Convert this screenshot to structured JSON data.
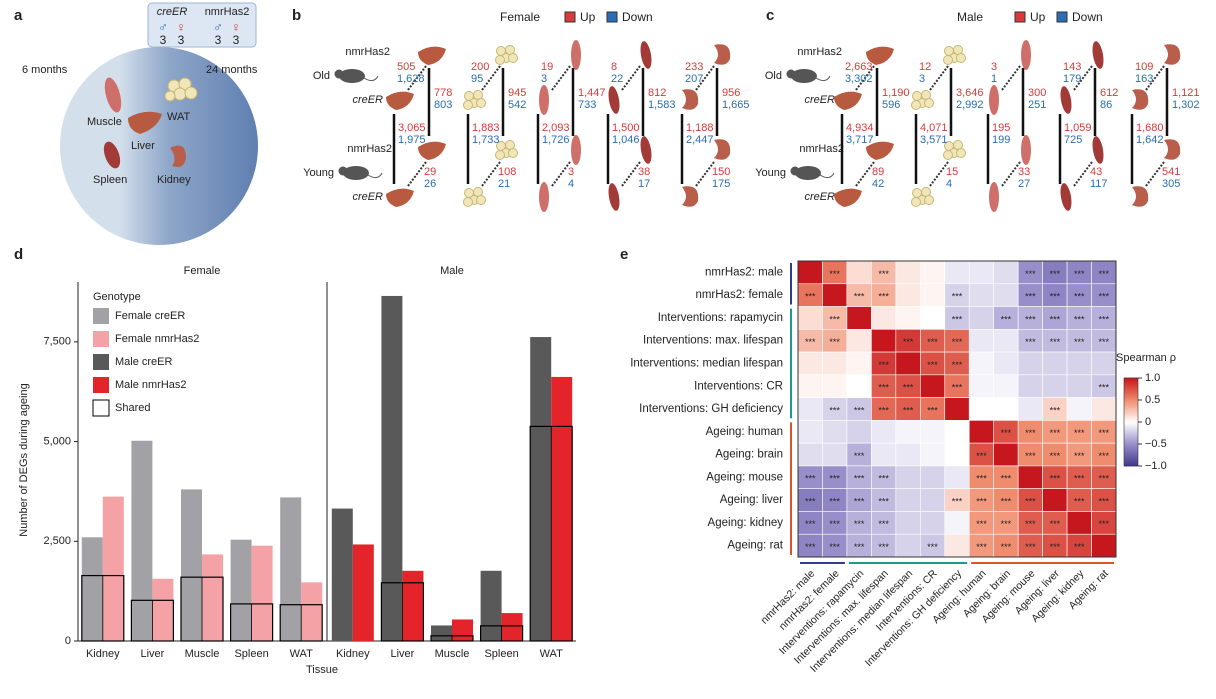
{
  "panel_a": {
    "label": "a",
    "ages": [
      "6 months",
      "24 months"
    ],
    "genotypes": [
      {
        "name": "creER",
        "male": "♂",
        "female": "♀",
        "male_n": "3",
        "female_n": "3"
      },
      {
        "name": "nmrHas2",
        "male": "♂",
        "female": "♀",
        "male_n": "3",
        "female_n": "3"
      }
    ],
    "tissues": {
      "muscle": "Muscle",
      "wat": "WAT",
      "liver": "Liver",
      "spleen": "Spleen",
      "kidney": "Kidney"
    }
  },
  "panel_b": {
    "label": "b",
    "title": "Female",
    "legend": {
      "up": "Up",
      "down": "Down"
    },
    "labels": {
      "old_nmr": "nmrHas2",
      "old": "Old",
      "old_cre": "creER",
      "young_nmr": "nmrHas2",
      "young": "Young",
      "young_cre": "creER"
    },
    "columns": [
      {
        "top": [
          "505",
          "1,628"
        ],
        "right": [
          "778",
          "803"
        ],
        "left": [
          "3,065",
          "1,975"
        ],
        "bottom": [
          "29",
          "26"
        ]
      },
      {
        "top": [
          "200",
          "95"
        ],
        "right": [
          "945",
          "542"
        ],
        "left": [
          "1,883",
          "1,733"
        ],
        "bottom": [
          "108",
          "21"
        ]
      },
      {
        "top": [
          "19",
          "3"
        ],
        "right": [
          "1,447",
          "733"
        ],
        "left": [
          "2,093",
          "1,726"
        ],
        "bottom": [
          "3",
          "4"
        ]
      },
      {
        "top": [
          "8",
          "22"
        ],
        "right": [
          "812",
          "1,583"
        ],
        "left": [
          "1,500",
          "1,046"
        ],
        "bottom": [
          "38",
          "17"
        ]
      },
      {
        "top": [
          "233",
          "207"
        ],
        "right": [
          "956",
          "1,665"
        ],
        "left": [
          "1,188",
          "2,447"
        ],
        "bottom": [
          "150",
          "175"
        ]
      }
    ]
  },
  "panel_c": {
    "label": "c",
    "title": "Male",
    "legend": {
      "up": "Up",
      "down": "Down"
    },
    "labels": {
      "old_nmr": "nmrHas2",
      "old": "Old",
      "old_cre": "creER",
      "young_nmr": "nmrHas2",
      "young": "Young",
      "young_cre": "creER"
    },
    "columns": [
      {
        "top": [
          "2,663",
          "3,302"
        ],
        "right": [
          "1,190",
          "596"
        ],
        "left": [
          "4,934",
          "3,717"
        ],
        "bottom": [
          "89",
          "42"
        ]
      },
      {
        "top": [
          "12",
          "3"
        ],
        "right": [
          "3,646",
          "2,992"
        ],
        "left": [
          "4,071",
          "3,571"
        ],
        "bottom": [
          "15",
          "4"
        ]
      },
      {
        "top": [
          "3",
          "1"
        ],
        "right": [
          "300",
          "251"
        ],
        "left": [
          "195",
          "199"
        ],
        "bottom": [
          "33",
          "27"
        ]
      },
      {
        "top": [
          "143",
          "179"
        ],
        "right": [
          "612",
          "86"
        ],
        "left": [
          "1,059",
          "725"
        ],
        "bottom": [
          "43",
          "117"
        ]
      },
      {
        "top": [
          "109",
          "163"
        ],
        "right": [
          "1,121",
          "1,302"
        ],
        "left": [
          "1,680",
          "1,642"
        ],
        "bottom": [
          "541",
          "305"
        ]
      }
    ]
  },
  "chart_data": [
    {
      "type": "bar",
      "label": "d",
      "y_label": "Number of DEGs during ageing",
      "x_label": "Tissue",
      "facet_titles": [
        "Female",
        "Male"
      ],
      "categories": [
        [
          "Kidney",
          "Liver",
          "Muscle",
          "Spleen",
          "WAT"
        ],
        [
          "Kidney",
          "Liver",
          "Muscle",
          "Spleen",
          "WAT"
        ]
      ],
      "ylim": [
        0,
        9000
      ],
      "yticks": [
        0,
        {
          "value": 2500,
          "label": "2,500"
        },
        {
          "value": 5000,
          "label": "5,000"
        },
        {
          "value": 7500,
          "label": "7,500"
        }
      ],
      "legend_title": "Genotype",
      "series": [
        {
          "name": "Female creER",
          "color": "#a2a2a6",
          "values": [
            [
              2600,
              5020,
              3800,
              2540,
              3600
            ],
            [
              null,
              null,
              null,
              null,
              null
            ]
          ]
        },
        {
          "name": "Female nmrHas2",
          "color": "#f4a2a6",
          "values": [
            [
              3620,
              1560,
              2170,
              2390,
              1470
            ],
            [
              null,
              null,
              null,
              null,
              null
            ]
          ]
        },
        {
          "name": "Male creER",
          "color": "#595959",
          "values": [
            [
              null,
              null,
              null,
              null,
              null
            ],
            [
              3320,
              8650,
              390,
              1760,
              7620
            ]
          ]
        },
        {
          "name": "Male nmrHas2",
          "color": "#e3242b",
          "values": [
            [
              null,
              null,
              null,
              null,
              null
            ],
            [
              2420,
              1760,
              540,
              700,
              6620
            ]
          ]
        },
        {
          "name": "Shared",
          "color": "#000000",
          "kind": "outline",
          "values": [
            [
              1640,
              1020,
              1600,
              930,
              910
            ],
            [
              null,
              1460,
              130,
              380,
              5380
            ]
          ]
        }
      ]
    },
    {
      "type": "heatmap",
      "label": "e",
      "colorbar_label": "Spearman ρ",
      "clim": [
        -1,
        1
      ],
      "cticks": [
        {
          "value": 1,
          "label": "1.0"
        },
        0.5,
        0,
        {
          "value": -0.5,
          "label": "−0.5"
        },
        {
          "value": -1,
          "label": "−1.0"
        }
      ],
      "rows": [
        "nmrHas2: male",
        "nmrHas2: female",
        "Interventions: rapamycin",
        "Interventions: max. lifespan",
        "Interventions: median lifespan",
        "Interventions: CR",
        "Interventions: GH deficiency",
        "Ageing: human",
        "Ageing: brain",
        "Ageing: mouse",
        "Ageing: liver",
        "Ageing: kidney",
        "Ageing: rat"
      ],
      "columns": [
        "nmrHas2: male",
        "nmrHas2: female",
        "Interventions: rapamycin",
        "Interventions: max. lifespan",
        "Interventions: median lifespan",
        "Interventions: CR",
        "Interventions: GH deficiency",
        "Ageing: human",
        "Ageing: brain",
        "Ageing: mouse",
        "Ageing: liver",
        "Ageing: kidney",
        "Ageing: rat"
      ],
      "values": [
        [
          1,
          0.6,
          0.15,
          0.3,
          0.1,
          0.05,
          -0.1,
          -0.1,
          -0.15,
          -0.5,
          -0.6,
          -0.55,
          -0.55
        ],
        [
          0.6,
          1,
          0.3,
          0.35,
          0.1,
          0.05,
          -0.2,
          -0.15,
          -0.15,
          -0.5,
          -0.55,
          -0.5,
          -0.5
        ],
        [
          0.15,
          0.3,
          1,
          0.1,
          0.05,
          0,
          -0.25,
          -0.2,
          -0.35,
          -0.35,
          -0.4,
          -0.35,
          -0.35
        ],
        [
          0.3,
          0.35,
          0.1,
          1,
          0.85,
          0.7,
          0.65,
          -0.1,
          -0.1,
          -0.3,
          -0.3,
          -0.3,
          -0.3
        ],
        [
          0.1,
          0.1,
          0.05,
          0.85,
          1,
          0.75,
          0.7,
          -0.05,
          -0.1,
          -0.2,
          -0.2,
          -0.2,
          -0.2
        ],
        [
          0.05,
          0.05,
          0,
          0.7,
          0.75,
          1,
          0.6,
          -0.05,
          -0.05,
          -0.2,
          -0.2,
          -0.2,
          -0.25
        ],
        [
          -0.1,
          -0.2,
          -0.25,
          0.65,
          0.7,
          0.6,
          1,
          0,
          0,
          -0.1,
          0.2,
          -0.05,
          0.1
        ],
        [
          -0.1,
          -0.15,
          -0.2,
          -0.1,
          -0.05,
          -0.05,
          0,
          1,
          0.75,
          0.5,
          0.45,
          0.45,
          0.45
        ],
        [
          -0.15,
          -0.15,
          -0.35,
          -0.1,
          -0.1,
          -0.05,
          0,
          0.75,
          1,
          0.5,
          0.5,
          0.45,
          0.5
        ],
        [
          -0.5,
          -0.5,
          -0.35,
          -0.3,
          -0.2,
          -0.2,
          -0.1,
          0.5,
          0.5,
          1,
          0.75,
          0.7,
          0.7
        ],
        [
          -0.6,
          -0.55,
          -0.4,
          -0.3,
          -0.2,
          -0.2,
          0.2,
          0.45,
          0.5,
          0.75,
          1,
          0.7,
          0.75
        ],
        [
          -0.55,
          -0.5,
          -0.35,
          -0.3,
          -0.2,
          -0.2,
          -0.05,
          0.45,
          0.45,
          0.7,
          0.7,
          1,
          0.8
        ],
        [
          -0.55,
          -0.5,
          -0.35,
          -0.3,
          -0.2,
          -0.25,
          0.1,
          0.45,
          0.5,
          0.7,
          0.75,
          0.8,
          1
        ]
      ],
      "significance": [
        [
          null,
          "***",
          null,
          "***",
          null,
          null,
          null,
          null,
          null,
          "***",
          "***",
          "***",
          "***"
        ],
        [
          "***",
          null,
          "***",
          "***",
          null,
          null,
          "***",
          null,
          null,
          "***",
          "***",
          "***",
          "***"
        ],
        [
          null,
          "***",
          null,
          null,
          null,
          null,
          "***",
          null,
          "***",
          "***",
          "***",
          "***",
          "***"
        ],
        [
          "***",
          "***",
          null,
          null,
          "***",
          "***",
          "***",
          null,
          null,
          "***",
          "***",
          "***",
          "***"
        ],
        [
          null,
          null,
          null,
          "***",
          null,
          "***",
          "***",
          null,
          null,
          null,
          null,
          null,
          null
        ],
        [
          null,
          null,
          null,
          "***",
          "***",
          null,
          "***",
          null,
          null,
          null,
          null,
          null,
          "***"
        ],
        [
          null,
          "***",
          "***",
          "***",
          "***",
          "***",
          null,
          null,
          null,
          null,
          "***",
          null,
          null
        ],
        [
          null,
          null,
          null,
          null,
          null,
          null,
          null,
          null,
          "***",
          "***",
          "***",
          "***",
          "***"
        ],
        [
          null,
          null,
          "***",
          null,
          null,
          null,
          null,
          "***",
          null,
          "***",
          "***",
          "***",
          "***"
        ],
        [
          "***",
          "***",
          "***",
          "***",
          null,
          null,
          null,
          "***",
          "***",
          null,
          "***",
          "***",
          "***"
        ],
        [
          "***",
          "***",
          "***",
          "***",
          null,
          null,
          "***",
          "***",
          "***",
          "***",
          null,
          "***",
          "***"
        ],
        [
          "***",
          "***",
          "***",
          "***",
          null,
          null,
          null,
          "***",
          "***",
          "***",
          "***",
          null,
          "***"
        ],
        [
          "***",
          "***",
          "***",
          "***",
          null,
          "***",
          null,
          "***",
          "***",
          "***",
          "***",
          "***",
          null
        ]
      ]
    }
  ]
}
